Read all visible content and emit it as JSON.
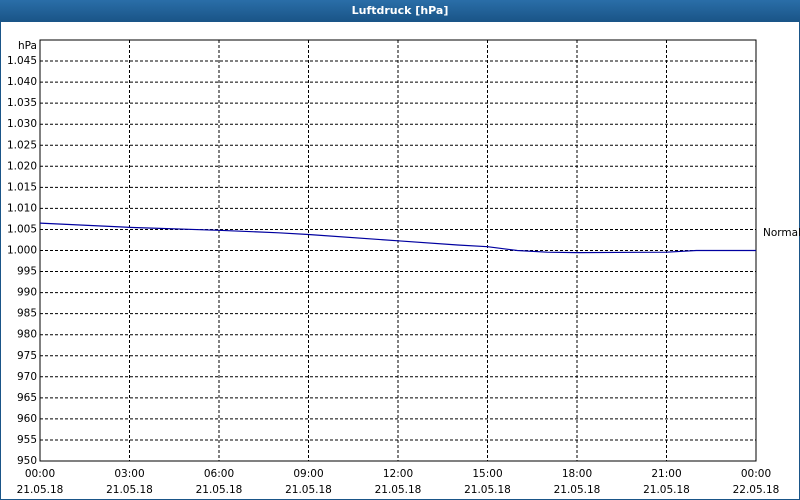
{
  "chart_data": {
    "type": "line",
    "title": "Luftdruck [hPa]",
    "y_label": "hPa",
    "x": [
      0,
      3,
      6,
      8,
      9,
      12,
      14,
      15,
      16,
      17,
      18,
      21,
      22,
      24
    ],
    "series": [
      {
        "name": "Normal",
        "color": "#0000a0",
        "values": [
          1006.5,
          1005.5,
          1004.8,
          1004.2,
          1003.8,
          1002.3,
          1001.3,
          1000.9,
          1000.0,
          999.6,
          999.5,
          999.6,
          1000.0,
          1000.0
        ]
      }
    ],
    "xlim": [
      0,
      24
    ],
    "xticks": [
      {
        "value": 0,
        "label": [
          "00:00",
          "21.05.18"
        ]
      },
      {
        "value": 3,
        "label": [
          "03:00",
          "21.05.18"
        ]
      },
      {
        "value": 6,
        "label": [
          "06:00",
          "21.05.18"
        ]
      },
      {
        "value": 9,
        "label": [
          "09:00",
          "21.05.18"
        ]
      },
      {
        "value": 12,
        "label": [
          "12:00",
          "21.05.18"
        ]
      },
      {
        "value": 15,
        "label": [
          "15:00",
          "21.05.18"
        ]
      },
      {
        "value": 18,
        "label": [
          "18:00",
          "21.05.18"
        ]
      },
      {
        "value": 21,
        "label": [
          "21:00",
          "21.05.18"
        ]
      },
      {
        "value": 24,
        "label": [
          "00:00",
          "22.05.18"
        ]
      }
    ],
    "ylim": [
      950,
      1050
    ],
    "yticks": [
      950,
      955,
      960,
      965,
      970,
      975,
      980,
      985,
      990,
      995,
      {
        "value": 1000,
        "label": "1.000"
      },
      {
        "value": 1005,
        "label": "1.005"
      },
      {
        "value": 1010,
        "label": "1.010"
      },
      {
        "value": 1015,
        "label": "1.015"
      },
      {
        "value": 1020,
        "label": "1.020"
      },
      {
        "value": 1025,
        "label": "1.025"
      },
      {
        "value": 1030,
        "label": "1.030"
      },
      {
        "value": 1035,
        "label": "1.035"
      },
      {
        "value": 1040,
        "label": "1.040"
      },
      {
        "value": 1045,
        "label": "1.045"
      }
    ],
    "grid": true
  }
}
